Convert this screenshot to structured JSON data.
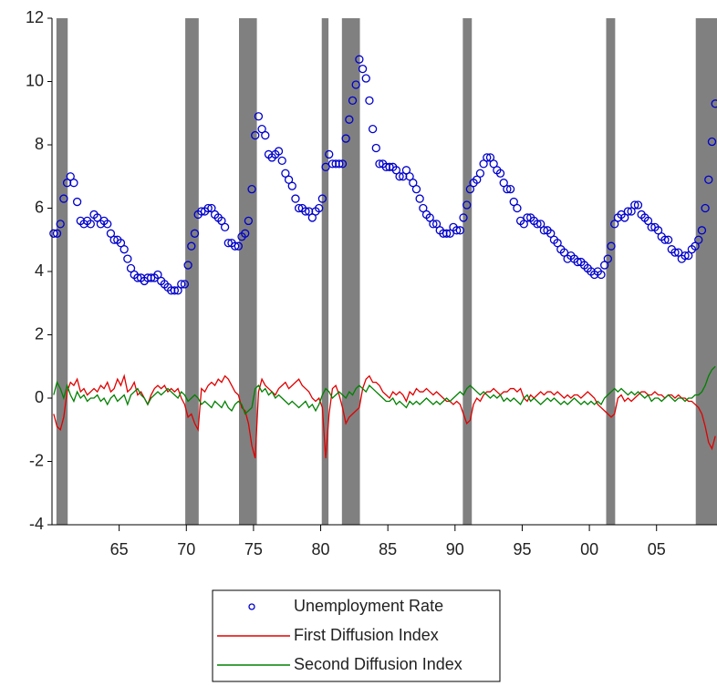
{
  "chart_data": {
    "type": "line",
    "xlim": [
      1960,
      2009.5
    ],
    "ylim": [
      -4,
      12
    ],
    "yticks": [
      -4,
      -2,
      0,
      2,
      4,
      6,
      8,
      10,
      12
    ],
    "xticks": [
      {
        "value": 1965,
        "label": "65"
      },
      {
        "value": 1970,
        "label": "70"
      },
      {
        "value": 1975,
        "label": "75"
      },
      {
        "value": 1980,
        "label": "80"
      },
      {
        "value": 1985,
        "label": "85"
      },
      {
        "value": 1990,
        "label": "90"
      },
      {
        "value": 1995,
        "label": "95"
      },
      {
        "value": 2000,
        "label": "00"
      },
      {
        "value": 2005,
        "label": "05"
      }
    ],
    "legend": "bottom",
    "shading_color": "#808080",
    "shaded_periods": [
      [
        1960.33,
        1961.17
      ],
      [
        1969.92,
        1970.92
      ],
      [
        1973.92,
        1975.25
      ],
      [
        1980.08,
        1980.58
      ],
      [
        1981.58,
        1982.92
      ],
      [
        1990.58,
        1991.25
      ],
      [
        2001.25,
        2001.92
      ],
      [
        2007.92,
        2009.5
      ]
    ],
    "x": [
      1960.125,
      1960.375,
      1960.625,
      1960.875,
      1961.125,
      1961.375,
      1961.625,
      1961.875,
      1962.125,
      1962.375,
      1962.625,
      1962.875,
      1963.125,
      1963.375,
      1963.625,
      1963.875,
      1964.125,
      1964.375,
      1964.625,
      1964.875,
      1965.125,
      1965.375,
      1965.625,
      1965.875,
      1966.125,
      1966.375,
      1966.625,
      1966.875,
      1967.125,
      1967.375,
      1967.625,
      1967.875,
      1968.125,
      1968.375,
      1968.625,
      1968.875,
      1969.125,
      1969.375,
      1969.625,
      1969.875,
      1970.125,
      1970.375,
      1970.625,
      1970.875,
      1971.125,
      1971.375,
      1971.625,
      1971.875,
      1972.125,
      1972.375,
      1972.625,
      1972.875,
      1973.125,
      1973.375,
      1973.625,
      1973.875,
      1974.125,
      1974.375,
      1974.625,
      1974.875,
      1975.125,
      1975.375,
      1975.625,
      1975.875,
      1976.125,
      1976.375,
      1976.625,
      1976.875,
      1977.125,
      1977.375,
      1977.625,
      1977.875,
      1978.125,
      1978.375,
      1978.625,
      1978.875,
      1979.125,
      1979.375,
      1979.625,
      1979.875,
      1980.125,
      1980.375,
      1980.625,
      1980.875,
      1981.125,
      1981.375,
      1981.625,
      1981.875,
      1982.125,
      1982.375,
      1982.625,
      1982.875,
      1983.125,
      1983.375,
      1983.625,
      1983.875,
      1984.125,
      1984.375,
      1984.625,
      1984.875,
      1985.125,
      1985.375,
      1985.625,
      1985.875,
      1986.125,
      1986.375,
      1986.625,
      1986.875,
      1987.125,
      1987.375,
      1987.625,
      1987.875,
      1988.125,
      1988.375,
      1988.625,
      1988.875,
      1989.125,
      1989.375,
      1989.625,
      1989.875,
      1990.125,
      1990.375,
      1990.625,
      1990.875,
      1991.125,
      1991.375,
      1991.625,
      1991.875,
      1992.125,
      1992.375,
      1992.625,
      1992.875,
      1993.125,
      1993.375,
      1993.625,
      1993.875,
      1994.125,
      1994.375,
      1994.625,
      1994.875,
      1995.125,
      1995.375,
      1995.625,
      1995.875,
      1996.125,
      1996.375,
      1996.625,
      1996.875,
      1997.125,
      1997.375,
      1997.625,
      1997.875,
      1998.125,
      1998.375,
      1998.625,
      1998.875,
      1999.125,
      1999.375,
      1999.625,
      1999.875,
      2000.125,
      2000.375,
      2000.625,
      2000.875,
      2001.125,
      2001.375,
      2001.625,
      2001.875,
      2002.125,
      2002.375,
      2002.625,
      2002.875,
      2003.125,
      2003.375,
      2003.625,
      2003.875,
      2004.125,
      2004.375,
      2004.625,
      2004.875,
      2005.125,
      2005.375,
      2005.625,
      2005.875,
      2006.125,
      2006.375,
      2006.625,
      2006.875,
      2007.125,
      2007.375,
      2007.625,
      2007.875,
      2008.125,
      2008.375,
      2008.625,
      2008.875,
      2009.125,
      2009.375
    ],
    "series": [
      {
        "name": "Unemployment Rate",
        "mode": "markers",
        "color": "#0000cc",
        "values": [
          5.2,
          5.2,
          5.5,
          6.3,
          6.8,
          7.0,
          6.8,
          6.2,
          5.6,
          5.5,
          5.6,
          5.5,
          5.8,
          5.7,
          5.5,
          5.6,
          5.5,
          5.2,
          5.0,
          5.0,
          4.9,
          4.7,
          4.4,
          4.1,
          3.9,
          3.8,
          3.8,
          3.7,
          3.8,
          3.8,
          3.8,
          3.9,
          3.7,
          3.6,
          3.5,
          3.4,
          3.4,
          3.4,
          3.6,
          3.6,
          4.2,
          4.8,
          5.2,
          5.8,
          5.9,
          5.9,
          6.0,
          6.0,
          5.8,
          5.7,
          5.6,
          5.4,
          4.9,
          4.9,
          4.8,
          4.8,
          5.1,
          5.2,
          5.6,
          6.6,
          8.3,
          8.9,
          8.5,
          8.3,
          7.7,
          7.6,
          7.7,
          7.8,
          7.5,
          7.1,
          6.9,
          6.7,
          6.3,
          6.0,
          6.0,
          5.9,
          5.9,
          5.7,
          5.9,
          6.0,
          6.3,
          7.3,
          7.7,
          7.4,
          7.4,
          7.4,
          7.4,
          8.2,
          8.8,
          9.4,
          9.9,
          10.7,
          10.4,
          10.1,
          9.4,
          8.5,
          7.9,
          7.4,
          7.4,
          7.3,
          7.3,
          7.3,
          7.2,
          7.0,
          7.0,
          7.2,
          7.0,
          6.8,
          6.6,
          6.3,
          6.0,
          5.8,
          5.7,
          5.5,
          5.5,
          5.3,
          5.2,
          5.2,
          5.2,
          5.4,
          5.3,
          5.3,
          5.7,
          6.1,
          6.6,
          6.8,
          6.9,
          7.1,
          7.4,
          7.6,
          7.6,
          7.4,
          7.2,
          7.1,
          6.8,
          6.6,
          6.6,
          6.2,
          6.0,
          5.6,
          5.5,
          5.7,
          5.7,
          5.6,
          5.5,
          5.5,
          5.3,
          5.3,
          5.2,
          5.0,
          4.9,
          4.7,
          4.6,
          4.4,
          4.5,
          4.4,
          4.3,
          4.3,
          4.2,
          4.1,
          4.0,
          3.9,
          4.0,
          3.9,
          4.2,
          4.4,
          4.8,
          5.5,
          5.7,
          5.8,
          5.7,
          5.9,
          5.9,
          6.1,
          6.1,
          5.8,
          5.7,
          5.6,
          5.4,
          5.4,
          5.3,
          5.1,
          5.0,
          5.0,
          4.7,
          4.6,
          4.6,
          4.4,
          4.5,
          4.5,
          4.7,
          4.8,
          5.0,
          5.3,
          6.0,
          6.9,
          8.1,
          9.3
        ]
      },
      {
        "name": "First Diffusion Index",
        "mode": "lines",
        "color": "#e00000",
        "values": [
          -0.5,
          -0.9,
          -1.0,
          -0.6,
          0.2,
          0.5,
          0.4,
          0.6,
          0.2,
          0.3,
          0.1,
          0.2,
          0.3,
          0.2,
          0.4,
          0.3,
          0.5,
          0.2,
          0.3,
          0.6,
          0.4,
          0.7,
          0.2,
          0.3,
          0.5,
          0.1,
          0.2,
          0.0,
          -0.2,
          0.1,
          0.3,
          0.4,
          0.3,
          0.4,
          0.2,
          0.3,
          0.2,
          0.3,
          0.0,
          -0.2,
          -0.6,
          -0.5,
          -0.8,
          -1.0,
          0.3,
          0.2,
          0.4,
          0.5,
          0.4,
          0.6,
          0.5,
          0.7,
          0.6,
          0.4,
          0.2,
          0.1,
          -0.3,
          -0.4,
          -0.8,
          -1.5,
          -1.9,
          0.2,
          0.6,
          0.4,
          0.3,
          0.2,
          0.1,
          0.3,
          0.4,
          0.5,
          0.3,
          0.4,
          0.5,
          0.6,
          0.4,
          0.3,
          0.2,
          0.0,
          -0.1,
          0.0,
          -0.3,
          -1.9,
          -0.5,
          0.3,
          0.4,
          0.1,
          -0.3,
          -0.8,
          -0.6,
          -0.5,
          -0.4,
          -0.3,
          0.3,
          0.6,
          0.7,
          0.5,
          0.5,
          0.4,
          0.2,
          0.1,
          0.0,
          0.2,
          0.1,
          0.2,
          0.1,
          -0.1,
          0.2,
          0.1,
          0.3,
          0.2,
          0.2,
          0.3,
          0.2,
          0.1,
          0.2,
          0.1,
          0.0,
          -0.1,
          -0.1,
          -0.2,
          -0.1,
          -0.2,
          -0.5,
          -0.8,
          -0.7,
          -0.2,
          0.0,
          -0.1,
          0.1,
          0.2,
          0.2,
          0.3,
          0.2,
          0.1,
          0.2,
          0.2,
          0.3,
          0.3,
          0.2,
          0.3,
          0.0,
          -0.1,
          0.1,
          0.0,
          0.1,
          0.2,
          0.1,
          0.2,
          0.2,
          0.1,
          0.2,
          0.1,
          0.0,
          0.1,
          0.0,
          0.1,
          0.1,
          0.0,
          0.1,
          0.2,
          0.1,
          0.0,
          -0.2,
          -0.3,
          -0.4,
          -0.5,
          -0.6,
          -0.5,
          0.0,
          0.1,
          -0.1,
          0.0,
          -0.1,
          0.0,
          0.1,
          0.2,
          0.2,
          0.1,
          0.1,
          0.2,
          0.1,
          0.1,
          0.0,
          0.1,
          0.1,
          0.0,
          0.1,
          0.0,
          0.0,
          -0.1,
          -0.1,
          -0.2,
          -0.3,
          -0.5,
          -0.9,
          -1.4,
          -1.6,
          -1.2
        ]
      },
      {
        "name": "Second Diffusion Index",
        "mode": "lines",
        "color": "#008000",
        "values": [
          0.1,
          0.5,
          0.3,
          0.0,
          0.4,
          0.1,
          -0.1,
          0.2,
          0.0,
          0.1,
          -0.1,
          0.0,
          0.0,
          0.1,
          -0.1,
          0.0,
          -0.2,
          0.0,
          0.1,
          -0.1,
          0.0,
          0.1,
          -0.2,
          0.1,
          0.2,
          0.3,
          0.1,
          0.0,
          -0.2,
          0.0,
          0.1,
          0.2,
          0.1,
          0.2,
          0.3,
          0.2,
          0.1,
          0.0,
          0.2,
          0.1,
          -0.1,
          0.0,
          0.1,
          0.0,
          -0.2,
          -0.1,
          -0.2,
          -0.3,
          -0.1,
          -0.2,
          -0.3,
          -0.1,
          -0.3,
          -0.4,
          -0.2,
          -0.1,
          -0.2,
          -0.5,
          -0.4,
          -0.3,
          0.3,
          0.4,
          0.2,
          0.3,
          0.1,
          0.2,
          0.0,
          0.1,
          0.0,
          -0.1,
          -0.2,
          -0.1,
          -0.2,
          -0.3,
          -0.2,
          -0.1,
          -0.3,
          -0.2,
          -0.4,
          -0.2,
          0.1,
          0.3,
          0.2,
          0.0,
          0.1,
          0.2,
          0.1,
          0.0,
          0.2,
          0.1,
          0.3,
          0.4,
          0.3,
          0.2,
          0.4,
          0.3,
          0.2,
          0.1,
          0.0,
          -0.1,
          -0.1,
          0.0,
          -0.2,
          -0.1,
          -0.2,
          -0.3,
          -0.1,
          -0.2,
          -0.1,
          -0.2,
          -0.1,
          0.0,
          -0.1,
          -0.2,
          -0.1,
          -0.2,
          -0.1,
          0.0,
          -0.1,
          0.0,
          0.1,
          0.2,
          0.1,
          0.3,
          0.4,
          0.3,
          0.2,
          0.1,
          0.2,
          0.1,
          0.0,
          0.1,
          0.0,
          0.1,
          -0.1,
          0.0,
          -0.1,
          0.0,
          -0.1,
          -0.2,
          0.0,
          0.1,
          -0.1,
          0.0,
          -0.1,
          -0.2,
          -0.1,
          0.0,
          -0.1,
          0.0,
          -0.1,
          -0.2,
          -0.1,
          -0.2,
          -0.1,
          0.0,
          -0.1,
          -0.2,
          -0.1,
          -0.2,
          -0.1,
          -0.2,
          -0.1,
          -0.2,
          0.0,
          0.1,
          0.2,
          0.3,
          0.2,
          0.3,
          0.2,
          0.1,
          0.2,
          0.1,
          0.2,
          0.1,
          0.0,
          0.1,
          -0.1,
          0.0,
          0.0,
          -0.1,
          0.0,
          0.1,
          0.0,
          -0.1,
          0.0,
          0.0,
          -0.1,
          0.0,
          0.0,
          0.1,
          0.1,
          0.2,
          0.4,
          0.7,
          0.9,
          1.0
        ]
      }
    ]
  }
}
